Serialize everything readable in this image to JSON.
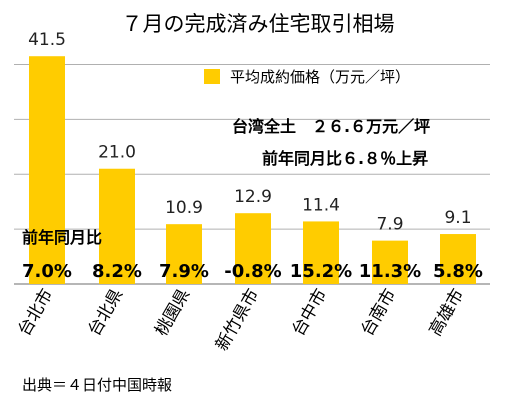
{
  "chart_data": {
    "type": "bar",
    "title": "７月の完成済み住宅取引相場",
    "legend": "平均成約価格（万元／坪）",
    "categories": [
      "台北市",
      "台北県",
      "桃園県",
      "新竹県市",
      "台中市",
      "台南市",
      "高雄市"
    ],
    "values": [
      41.5,
      21.0,
      10.9,
      12.9,
      11.4,
      7.9,
      9.1
    ],
    "value_labels": [
      "41.5",
      "21.0",
      "10.9",
      "12.9",
      "11.4",
      "7.9",
      "9.1"
    ],
    "yoy_title": "前年同月比",
    "yoy_labels": [
      "7.0%",
      "8.2%",
      "7.9%",
      "-0.8%",
      "15.2%",
      "11.3%",
      "5.8%"
    ],
    "annotation_line1": "台湾全土　２６.６万元／坪",
    "annotation_line2": "前年同月比６.８％上昇",
    "source": "出典＝４日付中国時報",
    "ylim": [
      0,
      45
    ],
    "bar_color": "#ffcc00",
    "grid": true,
    "legend_position": "top-right"
  }
}
